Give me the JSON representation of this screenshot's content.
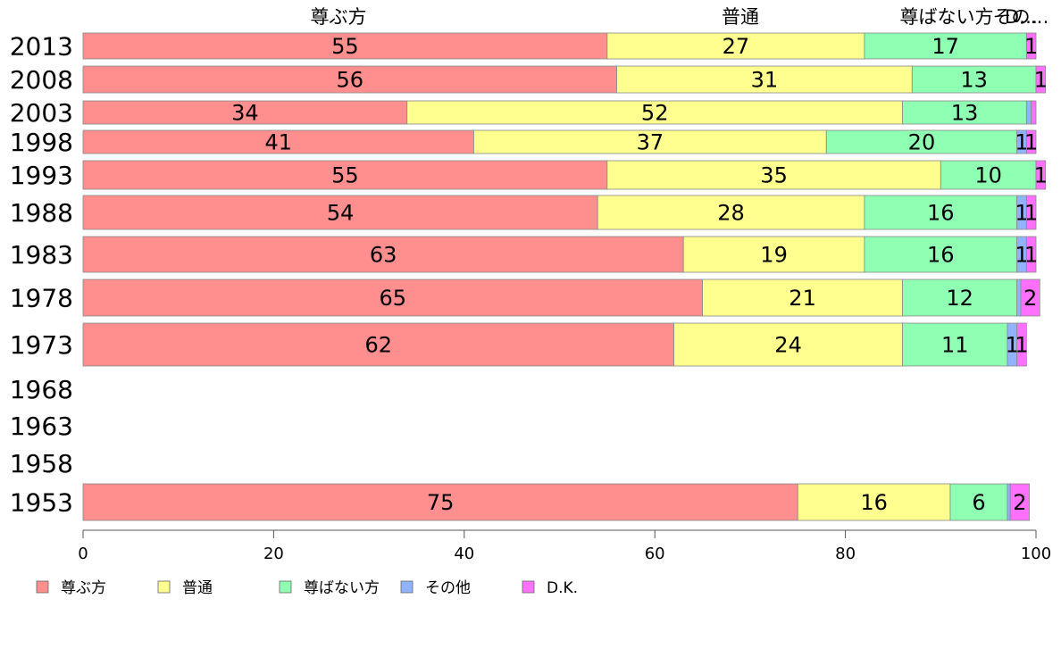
{
  "chart_data": {
    "type": "bar",
    "orientation": "horizontal",
    "stacked": true,
    "categories": [
      "2013",
      "2008",
      "2003",
      "1998",
      "1993",
      "1988",
      "1983",
      "1978",
      "1973",
      "1968",
      "1963",
      "1958",
      "1953"
    ],
    "series": [
      {
        "name": "尊ぶ方",
        "color": "#ff8f8f",
        "values": [
          55,
          56,
          34,
          41,
          55,
          54,
          63,
          65,
          62,
          null,
          null,
          null,
          75
        ]
      },
      {
        "name": "普通",
        "color": "#ffff8f",
        "values": [
          27,
          31,
          52,
          37,
          35,
          28,
          19,
          21,
          24,
          null,
          null,
          null,
          16
        ]
      },
      {
        "name": "尊ばない方",
        "color": "#8fffb3",
        "values": [
          17,
          13,
          13,
          20,
          10,
          16,
          16,
          12,
          11,
          null,
          null,
          null,
          6
        ]
      },
      {
        "name": "その他",
        "color": "#8fb3ff",
        "values": [
          0,
          0,
          0.5,
          1,
          0,
          1,
          1,
          0.4,
          1,
          null,
          null,
          null,
          0.3
        ]
      },
      {
        "name": "D.K.",
        "color": "#ff70ff",
        "values": [
          1,
          1,
          0.5,
          1,
          1,
          1,
          1,
          2,
          1,
          null,
          null,
          null,
          2
        ]
      }
    ],
    "top_labels": [
      "尊ぶ方",
      "普通",
      "尊ばない方",
      "その…",
      "D…"
    ],
    "xlim": [
      0,
      100
    ],
    "xticks": [
      0,
      20,
      40,
      60,
      80,
      100
    ],
    "grid": false,
    "legend_position": "bottom"
  }
}
